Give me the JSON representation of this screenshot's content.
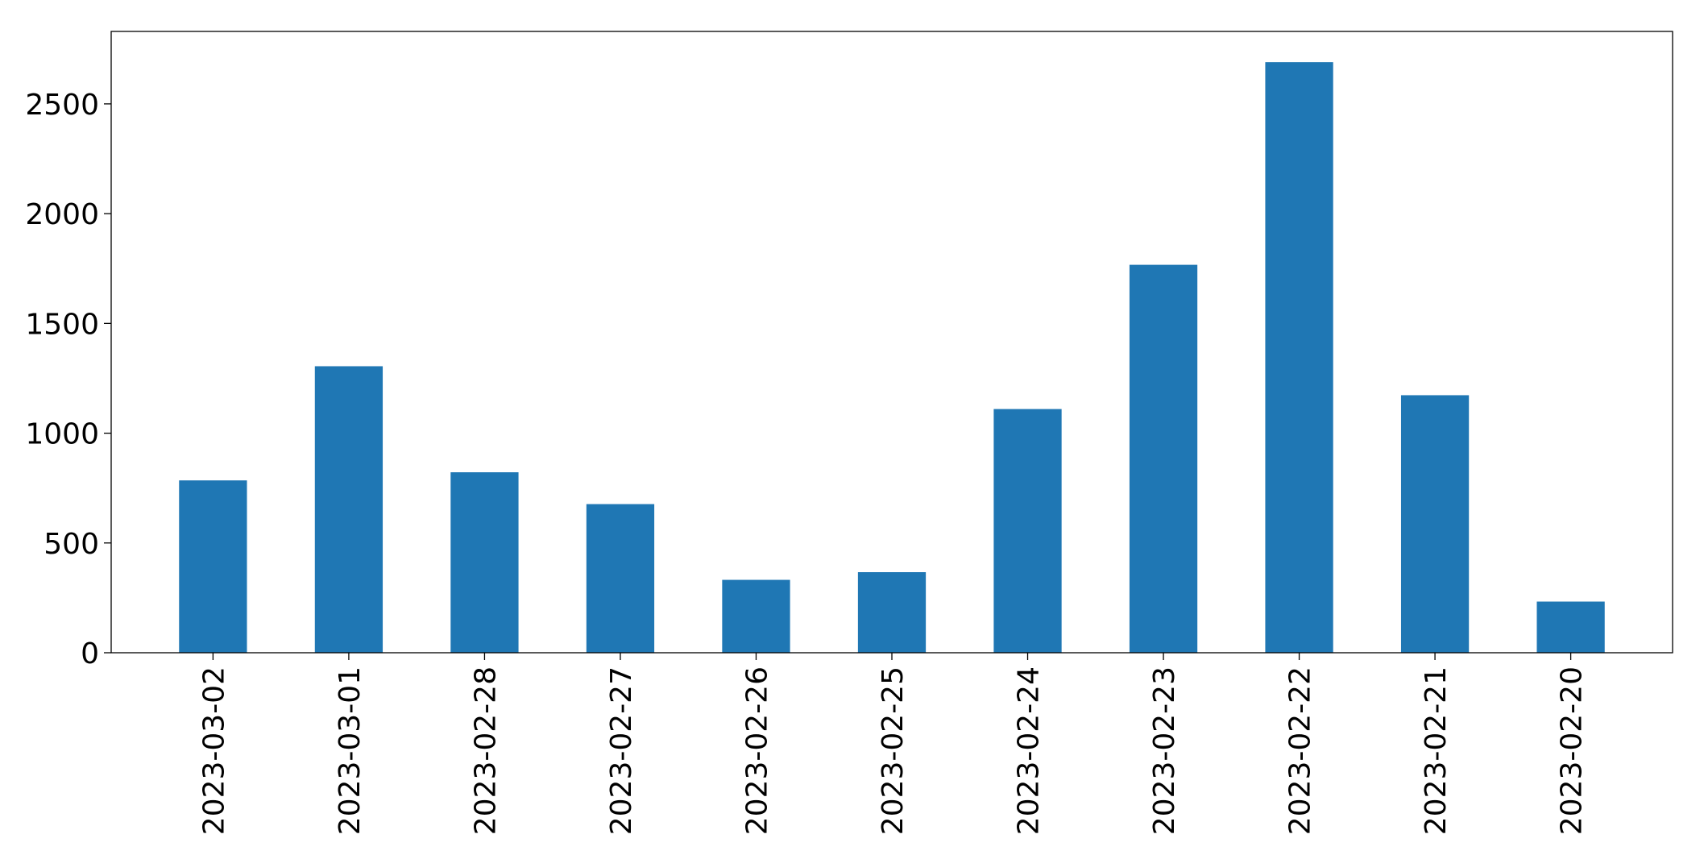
{
  "chart_data": {
    "type": "bar",
    "title": "",
    "xlabel": "",
    "ylabel": "",
    "categories": [
      "2023-03-02",
      "2023-03-01",
      "2023-02-28",
      "2023-02-27",
      "2023-02-26",
      "2023-02-25",
      "2023-02-24",
      "2023-02-23",
      "2023-02-22",
      "2023-02-21",
      "2023-02-20"
    ],
    "values": [
      785,
      1305,
      822,
      677,
      332,
      367,
      1110,
      1767,
      2690,
      1173,
      233
    ],
    "ylim": [
      0,
      2830
    ],
    "yticks": [
      0,
      500,
      1000,
      1500,
      2000,
      2500
    ],
    "yticklabels": [
      "0",
      "500",
      "1000",
      "1500",
      "2000",
      "2500"
    ],
    "bar_color": "#1f77b4",
    "grid": false,
    "legend": "none"
  }
}
